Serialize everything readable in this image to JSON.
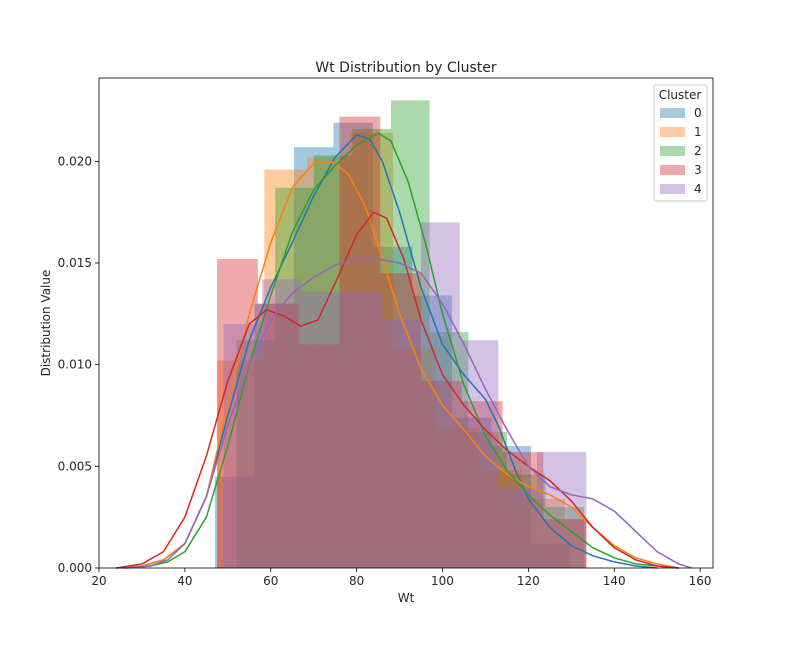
{
  "chart_data": {
    "type": "histogram-kde",
    "title": "Wt Distribution by Cluster",
    "xlabel": "Wt",
    "ylabel": "Distribution Value",
    "xlim": [
      20,
      163
    ],
    "ylim": [
      0,
      0.0241
    ],
    "xticks": [
      20,
      40,
      60,
      80,
      100,
      120,
      140,
      160
    ],
    "yticks": [
      0.0,
      0.005,
      0.01,
      0.015,
      0.02
    ],
    "ytick_labels": [
      "0.000",
      "0.005",
      "0.010",
      "0.015",
      "0.020"
    ],
    "grid": false,
    "legend": {
      "title": "Cluster",
      "placement": "top-right"
    },
    "series": [
      {
        "name": "0",
        "color": "#1f77b4",
        "bins": [
          [
            47.0,
            56.2,
            0.0045
          ],
          [
            56.2,
            65.4,
            0.013
          ],
          [
            65.4,
            74.6,
            0.0207
          ],
          [
            74.6,
            83.8,
            0.0219
          ],
          [
            83.8,
            93.0,
            0.0158
          ],
          [
            93.0,
            102.2,
            0.0134
          ],
          [
            102.2,
            111.4,
            0.0074
          ],
          [
            111.4,
            120.6,
            0.006
          ],
          [
            120.6,
            129.8,
            0.0012
          ]
        ],
        "kde": [
          [
            24,
            0.0
          ],
          [
            30,
            0.0001
          ],
          [
            35,
            0.0004
          ],
          [
            40,
            0.0012
          ],
          [
            45,
            0.0035
          ],
          [
            50,
            0.0075
          ],
          [
            55,
            0.0112
          ],
          [
            60,
            0.0138
          ],
          [
            65,
            0.016
          ],
          [
            70,
            0.0183
          ],
          [
            75,
            0.0202
          ],
          [
            80,
            0.0213
          ],
          [
            83,
            0.0211
          ],
          [
            86,
            0.02
          ],
          [
            90,
            0.0175
          ],
          [
            95,
            0.0138
          ],
          [
            100,
            0.011
          ],
          [
            105,
            0.0095
          ],
          [
            110,
            0.0083
          ],
          [
            113,
            0.007
          ],
          [
            117,
            0.0048
          ],
          [
            120,
            0.0034
          ],
          [
            125,
            0.002
          ],
          [
            130,
            0.0011
          ],
          [
            135,
            0.0006
          ],
          [
            140,
            0.0003
          ],
          [
            145,
            0.0001
          ],
          [
            150,
            0.0
          ]
        ]
      },
      {
        "name": "1",
        "color": "#ff7f0e",
        "bins": [
          [
            47.5,
            58.5,
            0.0102
          ],
          [
            58.5,
            68.5,
            0.0196
          ],
          [
            68.5,
            78.5,
            0.0202
          ],
          [
            78.5,
            88.5,
            0.0214
          ],
          [
            88.5,
            98.5,
            0.0108
          ],
          [
            98.5,
            108.5,
            0.0069
          ],
          [
            108.5,
            118.5,
            0.0048
          ],
          [
            118.5,
            128.5,
            0.0034
          ],
          [
            128.5,
            133.5,
            0.0024
          ]
        ],
        "kde": [
          [
            25,
            0.0
          ],
          [
            30,
            0.0001
          ],
          [
            35,
            0.0004
          ],
          [
            40,
            0.0012
          ],
          [
            45,
            0.0035
          ],
          [
            50,
            0.008
          ],
          [
            55,
            0.0125
          ],
          [
            60,
            0.016
          ],
          [
            65,
            0.0187
          ],
          [
            70,
            0.0199
          ],
          [
            74,
            0.02
          ],
          [
            78,
            0.0194
          ],
          [
            82,
            0.0178
          ],
          [
            86,
            0.0152
          ],
          [
            90,
            0.0125
          ],
          [
            95,
            0.0098
          ],
          [
            100,
            0.008
          ],
          [
            105,
            0.0068
          ],
          [
            110,
            0.0055
          ],
          [
            115,
            0.0046
          ],
          [
            120,
            0.004
          ],
          [
            125,
            0.0036
          ],
          [
            130,
            0.003
          ],
          [
            135,
            0.002
          ],
          [
            140,
            0.0011
          ],
          [
            145,
            0.0005
          ],
          [
            150,
            0.0002
          ],
          [
            155,
            0.0
          ]
        ]
      },
      {
        "name": "2",
        "color": "#2ca02c",
        "bins": [
          [
            52.0,
            61.0,
            0.0112
          ],
          [
            61.0,
            70.0,
            0.0187
          ],
          [
            70.0,
            79.0,
            0.0203
          ],
          [
            79.0,
            88.0,
            0.0216
          ],
          [
            88.0,
            97.0,
            0.023
          ],
          [
            97.0,
            106.0,
            0.0116
          ],
          [
            106.0,
            115.0,
            0.0067
          ],
          [
            115.0,
            124.0,
            0.0046
          ],
          [
            124.0,
            133.0,
            0.003
          ]
        ],
        "kde": [
          [
            26,
            0.0
          ],
          [
            32,
            0.0001
          ],
          [
            36,
            0.0003
          ],
          [
            40,
            0.0008
          ],
          [
            45,
            0.0025
          ],
          [
            50,
            0.006
          ],
          [
            55,
            0.01
          ],
          [
            60,
            0.0134
          ],
          [
            65,
            0.0165
          ],
          [
            70,
            0.0186
          ],
          [
            75,
            0.0198
          ],
          [
            80,
            0.0208
          ],
          [
            85,
            0.0214
          ],
          [
            88,
            0.021
          ],
          [
            92,
            0.019
          ],
          [
            96,
            0.016
          ],
          [
            100,
            0.0125
          ],
          [
            105,
            0.009
          ],
          [
            110,
            0.0065
          ],
          [
            115,
            0.0048
          ],
          [
            120,
            0.0036
          ],
          [
            125,
            0.0026
          ],
          [
            130,
            0.0018
          ],
          [
            135,
            0.001
          ],
          [
            140,
            0.0005
          ],
          [
            145,
            0.0002
          ],
          [
            150,
            0.0001
          ],
          [
            155,
            0.0
          ]
        ]
      },
      {
        "name": "3",
        "color": "#d62728",
        "bins": [
          [
            47.5,
            57.0,
            0.0152
          ],
          [
            57.0,
            66.5,
            0.013
          ],
          [
            66.5,
            76.0,
            0.011
          ],
          [
            76.0,
            85.5,
            0.0222
          ],
          [
            85.5,
            95.0,
            0.0145
          ],
          [
            95.0,
            104.5,
            0.0092
          ],
          [
            104.5,
            114.0,
            0.0082
          ],
          [
            114.0,
            123.5,
            0.0057
          ],
          [
            123.5,
            133.5,
            0.0024
          ]
        ],
        "kde": [
          [
            24,
            0.0
          ],
          [
            30,
            0.0002
          ],
          [
            35,
            0.0008
          ],
          [
            40,
            0.0025
          ],
          [
            45,
            0.0055
          ],
          [
            50,
            0.0092
          ],
          [
            55,
            0.012
          ],
          [
            59,
            0.0127
          ],
          [
            63,
            0.0124
          ],
          [
            67,
            0.0119
          ],
          [
            71,
            0.0122
          ],
          [
            75,
            0.014
          ],
          [
            80,
            0.0164
          ],
          [
            84,
            0.0175
          ],
          [
            87,
            0.0172
          ],
          [
            91,
            0.0152
          ],
          [
            95,
            0.0122
          ],
          [
            100,
            0.0095
          ],
          [
            105,
            0.008
          ],
          [
            110,
            0.0068
          ],
          [
            115,
            0.0058
          ],
          [
            120,
            0.005
          ],
          [
            125,
            0.0043
          ],
          [
            130,
            0.0033
          ],
          [
            135,
            0.002
          ],
          [
            140,
            0.001
          ],
          [
            145,
            0.0004
          ],
          [
            150,
            0.0001
          ],
          [
            155,
            0.0
          ]
        ]
      },
      {
        "name": "4",
        "color": "#9467bd",
        "bins": [
          [
            49.0,
            58.0,
            0.012
          ],
          [
            58.0,
            67.0,
            0.0142
          ],
          [
            67.0,
            76.0,
            0.0136
          ],
          [
            76.0,
            86.0,
            0.0136
          ],
          [
            86.0,
            95.0,
            0.0122
          ],
          [
            95.0,
            104.0,
            0.017
          ],
          [
            104.0,
            113.0,
            0.0112
          ],
          [
            113.0,
            122.0,
            0.0039
          ],
          [
            122.0,
            133.5,
            0.0057
          ]
        ],
        "kde": [
          [
            26,
            0.0
          ],
          [
            32,
            0.0001
          ],
          [
            36,
            0.0004
          ],
          [
            40,
            0.0012
          ],
          [
            45,
            0.0035
          ],
          [
            50,
            0.007
          ],
          [
            55,
            0.01
          ],
          [
            60,
            0.0122
          ],
          [
            65,
            0.0135
          ],
          [
            70,
            0.0143
          ],
          [
            75,
            0.0149
          ],
          [
            80,
            0.0152
          ],
          [
            85,
            0.0152
          ],
          [
            90,
            0.015
          ],
          [
            95,
            0.0145
          ],
          [
            100,
            0.013
          ],
          [
            105,
            0.011
          ],
          [
            110,
            0.0088
          ],
          [
            115,
            0.0068
          ],
          [
            120,
            0.005
          ],
          [
            125,
            0.004
          ],
          [
            130,
            0.0036
          ],
          [
            135,
            0.0034
          ],
          [
            140,
            0.0028
          ],
          [
            145,
            0.0018
          ],
          [
            150,
            0.0008
          ],
          [
            155,
            0.0002
          ],
          [
            158,
            0.0
          ]
        ]
      }
    ]
  }
}
